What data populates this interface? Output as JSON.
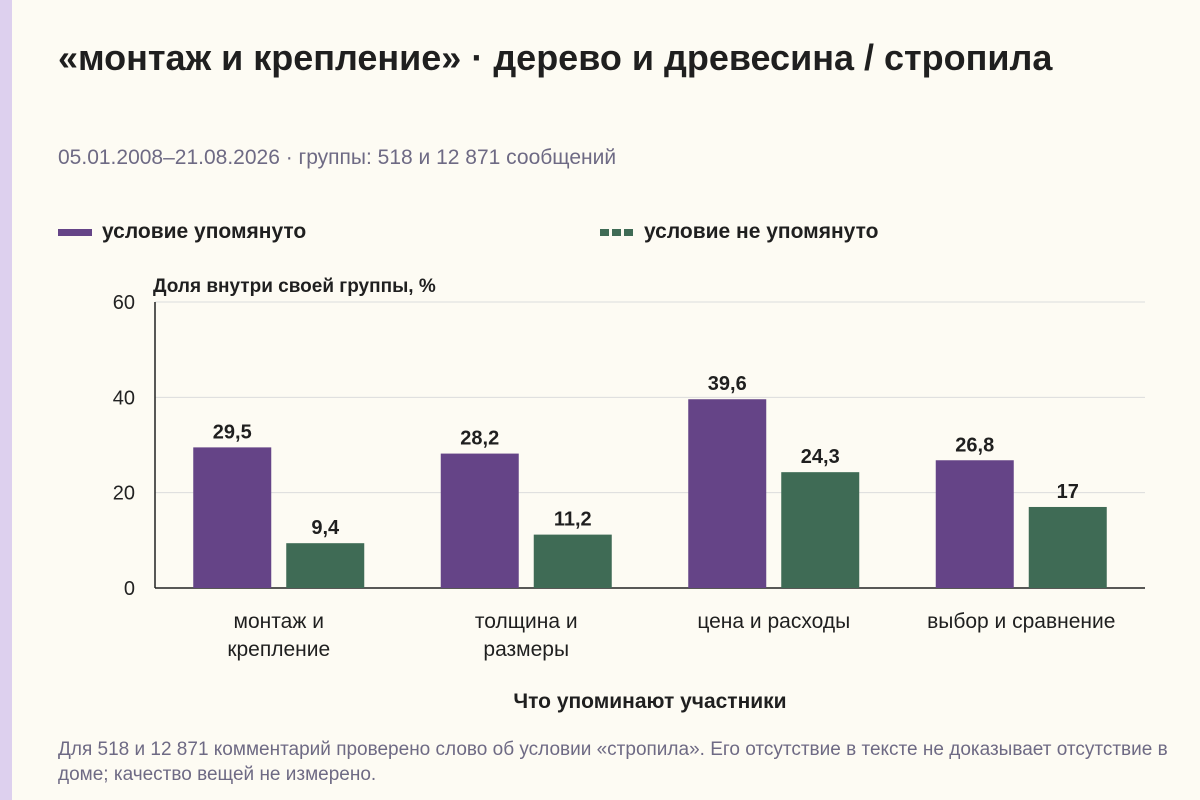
{
  "header": {
    "title": "«монтаж и крепление» · дерево и древесина / стропила",
    "subtitle": "05.01.2008–21.08.2026 · группы: 518 и 12 871 сообщений"
  },
  "footnote": "Для 518 и 12 871 комментарий проверено слово об условии «стропила». Его отсутствие в тексте не доказывает отсутствие в доме; качество вещей не измерено.",
  "colors": {
    "series1": "#654487",
    "series2": "#3f6b55",
    "grid": "#dcdcdc",
    "axis": "#222222"
  },
  "chart_data": {
    "type": "bar",
    "ylabel": "Доля внутри своей группы, %",
    "xlabel": "Что упоминают участники",
    "ylim": [
      0,
      60
    ],
    "yticks": [
      0,
      20,
      40,
      60
    ],
    "grid": true,
    "legend_position": "top",
    "categories": [
      [
        "монтаж и",
        "крепление"
      ],
      [
        "толщина и",
        "размеры"
      ],
      [
        "цена и расходы"
      ],
      [
        "выбор и сравнение"
      ]
    ],
    "series": [
      {
        "name": "условие упомянуто",
        "values": [
          29.5,
          28.2,
          39.6,
          26.8
        ],
        "labels": [
          "29,5",
          "28,2",
          "39,6",
          "26,8"
        ]
      },
      {
        "name": "условие не упомянуто",
        "values": [
          9.4,
          11.2,
          24.3,
          17
        ],
        "labels": [
          "9,4",
          "11,2",
          "24,3",
          "17"
        ]
      }
    ]
  }
}
